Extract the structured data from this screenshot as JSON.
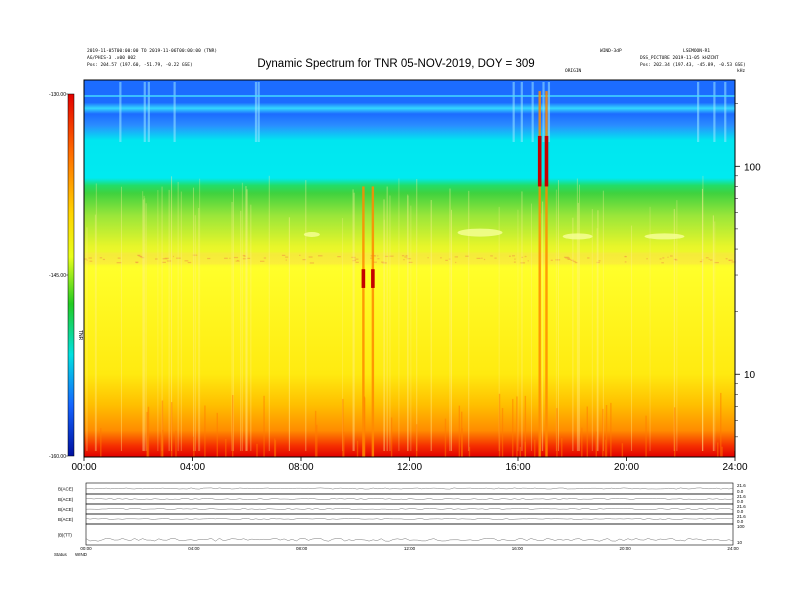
{
  "header": {
    "left_line1": "2019-11-05T00:00:00 TO 2019-11-06T00:00:00 (TNR)",
    "left_line2": "AG/PHIS-3 .x00 002",
    "left_line3": "Pos: 204.57 (197.60, -51.79, -0.22 GSE)",
    "right_top_a": "WIND-3dP",
    "right_top_b": "LSEMOON-R1",
    "right_line2": "DSS_PICTURE 2019-11-05 kHZCNT",
    "right_line3": "Pos: 202.34 (197.43, -45.89, -0.53 GSE)",
    "mid_right_label": "ORIGIN",
    "edge_label": "kHz"
  },
  "chart_data": [
    {
      "type": "heatmap",
      "title": "Dynamic Spectrum for TNR 05-NOV-2019, DOY = 309",
      "x_tick_labels": [
        "00:00",
        "04:00",
        "08:00",
        "12:00",
        "16:00",
        "20:00",
        "24:00"
      ],
      "x_range_hours": [
        0,
        24
      ],
      "y_scale": "log",
      "y_range_khz": [
        4,
        260
      ],
      "y_tick_labels": [
        "100",
        "10"
      ],
      "y_tick_values": [
        100,
        10
      ],
      "colorbar": {
        "labels": [
          "-130.00",
          "-145.00",
          "-160.00"
        ],
        "values": [
          -130,
          -145,
          -160
        ],
        "unit_label": "TNR",
        "colors": [
          "#e30000",
          "#ff6a00",
          "#ffd400",
          "#e8ff1a",
          "#22cc22",
          "#00e0e0",
          "#1464ff",
          "#0010a0"
        ]
      },
      "radio_bursts_hours": [
        10.3,
        10.65,
        16.8,
        17.05
      ],
      "background_colors": {
        "top": "#1464ff",
        "cyan": "#00e6f0",
        "green": "#3fd23f",
        "yellow": "#ffff2a",
        "orange": "#ff8c00",
        "red": "#e00000"
      }
    },
    {
      "type": "line",
      "title": "",
      "panels": [
        {
          "label": "B(ACE)",
          "right_ticks": [
            "21.6",
            "0.0"
          ]
        },
        {
          "label": "B(ACE)",
          "right_ticks": [
            "21.6",
            "0.0"
          ]
        },
        {
          "label": "B(ACE)",
          "right_ticks": [
            "21.6",
            "0.0"
          ]
        },
        {
          "label": "B(ACE)",
          "right_ticks": [
            "21.6",
            "0.0"
          ]
        },
        {
          "label": "|B|(TT)",
          "right_ticks": [
            "100",
            "10"
          ]
        }
      ],
      "x_tick_labels": [
        "00:00",
        "04:00",
        "08:00",
        "12:00",
        "16:00",
        "20:00",
        "24:00"
      ],
      "footer_left": "Status",
      "footer_mid": "WIND"
    }
  ]
}
